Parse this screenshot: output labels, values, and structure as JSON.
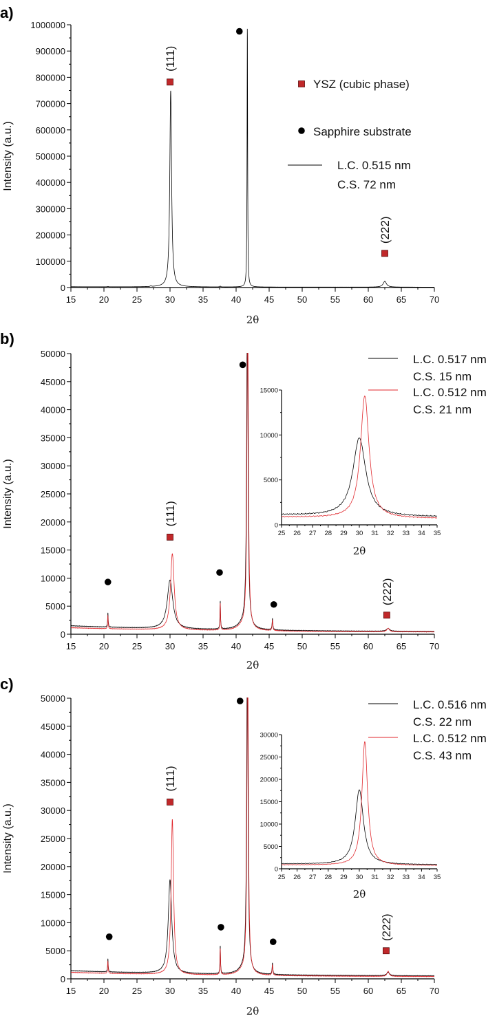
{
  "chart_data": [
    {
      "panel_label": "a)",
      "type": "line",
      "xlabel": "2θ",
      "ylabel": "Intensity (a.u.)",
      "xlim": [
        15,
        70
      ],
      "ylim": [
        0,
        1000000
      ],
      "xticks": [
        15,
        20,
        25,
        30,
        35,
        40,
        45,
        50,
        55,
        60,
        65,
        70
      ],
      "yticks": [
        0,
        100000,
        200000,
        300000,
        400000,
        500000,
        600000,
        700000,
        800000,
        900000,
        1000000
      ],
      "series": [
        {
          "name": "L.C. 0.515 nm C.S. 72 nm",
          "legend": [
            "L.C. 0.515 nm",
            "C.S. 72 nm"
          ],
          "color": "#000000",
          "baseline": [
            1500,
            20,
            1500
          ],
          "peaks": [
            [
              30.1,
              748000,
              0.16
            ],
            [
              41.7,
              1000000,
              0.05
            ],
            [
              62.5,
              22000,
              0.3
            ],
            [
              27.1,
              2500,
              0.1
            ],
            [
              37.6,
              3000,
              0.08
            ],
            [
              20.6,
              1500,
              0.08
            ]
          ]
        }
      ],
      "legend_markers": [
        {
          "marker": "square",
          "label": "YSZ (cubic phase)",
          "color": "#c0282a"
        },
        {
          "marker": "circle",
          "label": "Sapphire substrate",
          "color": "#000000"
        }
      ],
      "annotations": [
        {
          "marker": "square",
          "x": 30.0,
          "y": 782000,
          "label": "(111)"
        },
        {
          "marker": "circle",
          "x": 40.5,
          "y": 975000
        },
        {
          "marker": "square",
          "x": 62.5,
          "y": 130000,
          "label": "(222)"
        }
      ]
    },
    {
      "panel_label": "b)",
      "type": "line",
      "xlabel": "2θ",
      "ylabel": "Intensity (a.u.)",
      "xlim": [
        15,
        70
      ],
      "ylim": [
        0,
        50000
      ],
      "xticks": [
        15,
        20,
        25,
        30,
        35,
        40,
        45,
        50,
        55,
        60,
        65,
        70
      ],
      "yticks": [
        0,
        5000,
        10000,
        15000,
        20000,
        25000,
        30000,
        35000,
        40000,
        45000,
        50000
      ],
      "series": [
        {
          "name": "L.C. 0.517 nm C.S. 15 nm",
          "legend": [
            "L.C. 0.517 nm",
            "C.S. 15 nm"
          ],
          "color": "#000000",
          "baseline": [
            1100,
            22,
            400
          ],
          "peaks": [
            [
              20.6,
              2600,
              0.05
            ],
            [
              30.0,
              8700,
              0.5
            ],
            [
              37.6,
              5000,
              0.05
            ],
            [
              41.7,
              60000,
              0.12
            ],
            [
              41.2,
              1200,
              1.0
            ],
            [
              45.5,
              2000,
              0.07
            ],
            [
              63.0,
              500,
              0.3
            ]
          ]
        },
        {
          "name": "L.C. 0.512 nm C.S. 21 nm",
          "legend": [
            "L.C. 0.512 nm",
            "C.S. 21 nm"
          ],
          "color": "#e0262b",
          "baseline": [
            800,
            22,
            350
          ],
          "peaks": [
            [
              20.6,
              2400,
              0.05
            ],
            [
              30.35,
              13600,
              0.33
            ],
            [
              37.6,
              4800,
              0.05
            ],
            [
              41.75,
              60000,
              0.12
            ],
            [
              41.2,
              1000,
              1.0
            ],
            [
              45.5,
              1800,
              0.07
            ],
            [
              63.0,
              600,
              0.25
            ]
          ]
        }
      ],
      "annotations": [
        {
          "marker": "circle",
          "x": 20.6,
          "y": 9300
        },
        {
          "marker": "square",
          "x": 30.0,
          "y": 17300,
          "label": "(111)"
        },
        {
          "marker": "circle",
          "x": 37.5,
          "y": 11000
        },
        {
          "marker": "circle",
          "x": 41.0,
          "y": 48000
        },
        {
          "marker": "circle",
          "x": 45.7,
          "y": 5300
        },
        {
          "marker": "square",
          "x": 62.8,
          "y": 3400,
          "label": "(222)"
        }
      ],
      "inset": {
        "xlabel": "2θ",
        "xlim": [
          25,
          35
        ],
        "ylim": [
          0,
          15000
        ],
        "xticks": [
          25,
          26,
          27,
          28,
          29,
          30,
          31,
          32,
          33,
          34,
          35
        ],
        "yticks": [
          0,
          5000,
          10000,
          15000
        ]
      }
    },
    {
      "panel_label": "c)",
      "type": "line",
      "xlabel": "2θ",
      "ylabel": "Intensity (a.u.)",
      "xlim": [
        15,
        70
      ],
      "ylim": [
        0,
        50000
      ],
      "xticks": [
        15,
        20,
        25,
        30,
        35,
        40,
        45,
        50,
        55,
        60,
        65,
        70
      ],
      "yticks": [
        0,
        5000,
        10000,
        15000,
        20000,
        25000,
        30000,
        35000,
        40000,
        45000,
        50000
      ],
      "series": [
        {
          "name": "L.C. 0.516 nm C.S. 22 nm",
          "legend": [
            "L.C. 0.516 nm",
            "C.S. 22 nm"
          ],
          "color": "#000000",
          "baseline": [
            1000,
            22,
            450
          ],
          "peaks": [
            [
              20.6,
              2400,
              0.05
            ],
            [
              30.0,
              16700,
              0.32
            ],
            [
              37.6,
              5000,
              0.05
            ],
            [
              41.7,
              60000,
              0.12
            ],
            [
              41.2,
              1000,
              1.0
            ],
            [
              45.5,
              2000,
              0.07
            ],
            [
              63.0,
              600,
              0.25
            ]
          ]
        },
        {
          "name": "L.C. 0.512 nm C.S. 43 nm",
          "legend": [
            "L.C. 0.512 nm",
            "C.S. 43 nm"
          ],
          "color": "#e0262b",
          "baseline": [
            800,
            22,
            350
          ],
          "peaks": [
            [
              20.6,
              2200,
              0.05
            ],
            [
              30.35,
              27700,
              0.22
            ],
            [
              37.6,
              4700,
              0.05
            ],
            [
              41.75,
              60000,
              0.12
            ],
            [
              41.2,
              900,
              1.0
            ],
            [
              45.5,
              1800,
              0.07
            ],
            [
              63.0,
              900,
              0.2
            ]
          ]
        }
      ],
      "annotations": [
        {
          "marker": "circle",
          "x": 20.8,
          "y": 7500
        },
        {
          "marker": "square",
          "x": 30.0,
          "y": 31500,
          "label": "(111)"
        },
        {
          "marker": "circle",
          "x": 37.7,
          "y": 9200
        },
        {
          "marker": "circle",
          "x": 40.6,
          "y": 49500
        },
        {
          "marker": "circle",
          "x": 45.6,
          "y": 6600
        },
        {
          "marker": "square",
          "x": 62.7,
          "y": 5000,
          "label": "(222)"
        }
      ],
      "inset": {
        "xlabel": "2θ",
        "xlim": [
          25,
          35
        ],
        "ylim": [
          0,
          30000
        ],
        "xticks": [
          25,
          26,
          27,
          28,
          29,
          30,
          31,
          32,
          33,
          34,
          35
        ],
        "yticks": [
          0,
          5000,
          10000,
          15000,
          20000,
          25000,
          30000
        ]
      }
    }
  ]
}
